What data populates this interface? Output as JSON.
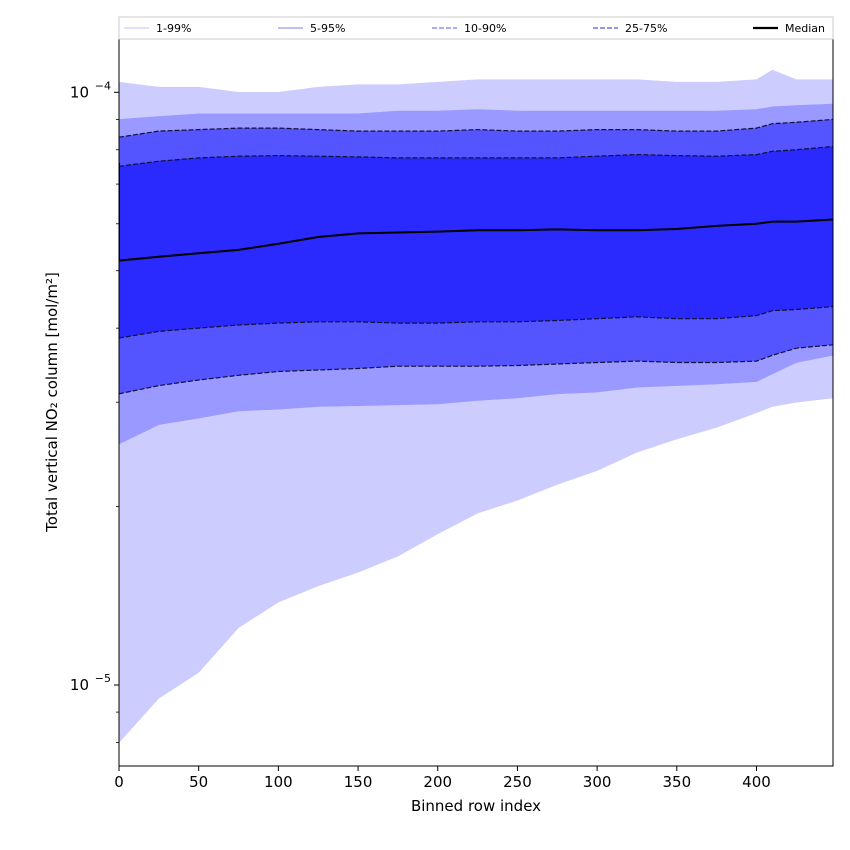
{
  "chart_data": {
    "type": "area",
    "xlabel": "Binned row index",
    "ylabel": "Total vertical NO₂ column [mol/m²]",
    "xlim": [
      0,
      448
    ],
    "ylim": [
      7.3e-06,
      0.000123
    ],
    "yscale": "log",
    "grid": false,
    "legend_position": "top",
    "x_ticks": [
      0,
      50,
      100,
      150,
      200,
      250,
      300,
      350,
      400
    ],
    "y_ticks": [
      {
        "value": 1e-05,
        "mantissa": "10",
        "exp": "−5"
      },
      {
        "value": 0.0001,
        "mantissa": "10",
        "exp": "−4"
      }
    ],
    "x": [
      0,
      25,
      50,
      75,
      100,
      125,
      150,
      175,
      200,
      225,
      250,
      275,
      300,
      325,
      350,
      375,
      400,
      410,
      425,
      448
    ],
    "bands": [
      {
        "name": "1-99%",
        "color": "#ccccff",
        "line_color": "#ccccff",
        "dash": "solid",
        "low": [
          8e-06,
          9.5e-06,
          1.05e-05,
          1.25e-05,
          1.38e-05,
          1.47e-05,
          1.55e-05,
          1.65e-05,
          1.8e-05,
          1.95e-05,
          2.05e-05,
          2.18e-05,
          2.3e-05,
          2.47e-05,
          2.6e-05,
          2.72e-05,
          2.88e-05,
          2.95e-05,
          3e-05,
          3.05e-05
        ],
        "high": [
          0.000104,
          0.000102,
          0.000102,
          0.0001,
          0.0001,
          0.000102,
          0.000103,
          0.000103,
          0.000104,
          0.000105,
          0.000105,
          0.000105,
          0.000105,
          0.000105,
          0.000104,
          0.000104,
          0.000105,
          0.000109,
          0.000105,
          0.000105
        ]
      },
      {
        "name": "5-95%",
        "color": "#9999ff",
        "line_color": "#9999ff",
        "dash": "solid",
        "low": [
          2.55e-05,
          2.75e-05,
          2.82e-05,
          2.9e-05,
          2.92e-05,
          2.95e-05,
          2.96e-05,
          2.97e-05,
          2.98e-05,
          3.02e-05,
          3.05e-05,
          3.1e-05,
          3.12e-05,
          3.18e-05,
          3.2e-05,
          3.22e-05,
          3.25e-05,
          3.35e-05,
          3.5e-05,
          3.6e-05
        ],
        "high": [
          9e-05,
          9.1e-05,
          9.2e-05,
          9.2e-05,
          9.2e-05,
          9.2e-05,
          9.2e-05,
          9.3e-05,
          9.3e-05,
          9.35e-05,
          9.3e-05,
          9.3e-05,
          9.3e-05,
          9.3e-05,
          9.3e-05,
          9.3e-05,
          9.35e-05,
          9.45e-05,
          9.5e-05,
          9.55e-05
        ]
      },
      {
        "name": "10-90%",
        "color": "#5555ff",
        "line_color": "#7777ff",
        "dash": "dashed",
        "low": [
          3.1e-05,
          3.2e-05,
          3.27e-05,
          3.33e-05,
          3.38e-05,
          3.4e-05,
          3.42e-05,
          3.45e-05,
          3.45e-05,
          3.45e-05,
          3.46e-05,
          3.48e-05,
          3.5e-05,
          3.52e-05,
          3.5e-05,
          3.5e-05,
          3.52e-05,
          3.6e-05,
          3.7e-05,
          3.75e-05
        ],
        "high": [
          8.4e-05,
          8.6e-05,
          8.65e-05,
          8.7e-05,
          8.7e-05,
          8.65e-05,
          8.6e-05,
          8.6e-05,
          8.6e-05,
          8.65e-05,
          8.6e-05,
          8.6e-05,
          8.65e-05,
          8.65e-05,
          8.6e-05,
          8.6e-05,
          8.7e-05,
          8.85e-05,
          8.9e-05,
          9e-05
        ]
      },
      {
        "name": "25-75%",
        "color": "#2a2aff",
        "line_color": "#5555ee",
        "dash": "dashed",
        "low": [
          3.85e-05,
          3.95e-05,
          4e-05,
          4.05e-05,
          4.08e-05,
          4.1e-05,
          4.1e-05,
          4.08e-05,
          4.08e-05,
          4.1e-05,
          4.1e-05,
          4.12e-05,
          4.15e-05,
          4.18e-05,
          4.15e-05,
          4.15e-05,
          4.2e-05,
          4.28e-05,
          4.3e-05,
          4.35e-05
        ],
        "high": [
          7.5e-05,
          7.65e-05,
          7.75e-05,
          7.8e-05,
          7.82e-05,
          7.8e-05,
          7.78e-05,
          7.75e-05,
          7.75e-05,
          7.75e-05,
          7.75e-05,
          7.75e-05,
          7.8e-05,
          7.85e-05,
          7.82e-05,
          7.8e-05,
          7.85e-05,
          7.95e-05,
          8e-05,
          8.1e-05
        ]
      }
    ],
    "median": {
      "name": "Median",
      "color": "#000000",
      "values": [
        5.2e-05,
        5.28e-05,
        5.35e-05,
        5.42e-05,
        5.55e-05,
        5.7e-05,
        5.78e-05,
        5.8e-05,
        5.82e-05,
        5.85e-05,
        5.85e-05,
        5.87e-05,
        5.85e-05,
        5.85e-05,
        5.88e-05,
        5.95e-05,
        6e-05,
        6.05e-05,
        6.05e-05,
        6.1e-05
      ]
    }
  }
}
